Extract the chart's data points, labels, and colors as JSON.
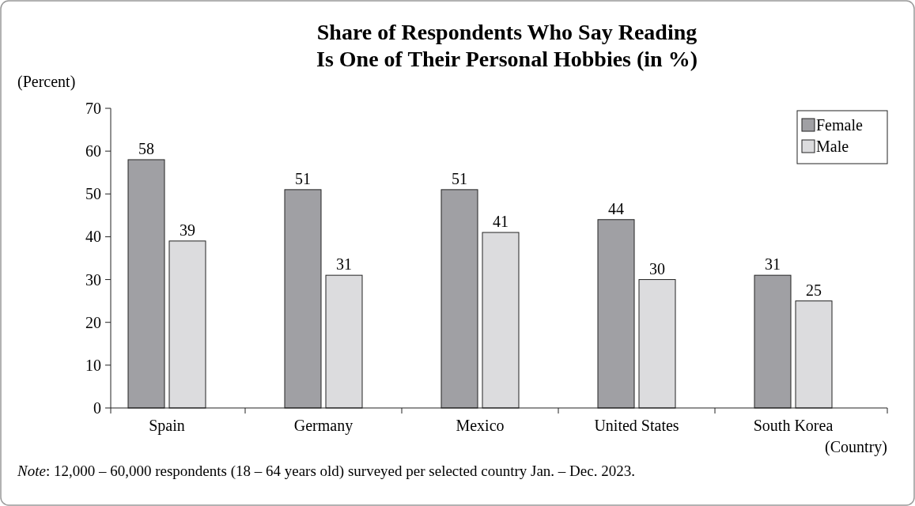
{
  "chart_data": {
    "type": "bar",
    "title": "Share of Respondents Who Say Reading Is One of Their Personal Hobbies (in %)",
    "ylabel": "(Percent)",
    "xlabel": "(Country)",
    "categories": [
      "Spain",
      "Germany",
      "Mexico",
      "United States",
      "South Korea"
    ],
    "series": [
      {
        "name": "Female",
        "color": "#a0a0a4",
        "values": [
          58,
          51,
          51,
          44,
          31
        ]
      },
      {
        "name": "Male",
        "color": "#dcdcde",
        "values": [
          39,
          31,
          41,
          30,
          25
        ]
      }
    ],
    "ylim": [
      0,
      70
    ],
    "yticks": [
      0,
      10,
      20,
      30,
      40,
      50,
      60,
      70
    ],
    "data_labels": true,
    "legend": "top right",
    "grid": false,
    "annotations": [
      "Note: 12,000 – 60,000 respondents (18 – 64 years old) surveyed per selected country Jan. – Dec. 2023."
    ]
  }
}
